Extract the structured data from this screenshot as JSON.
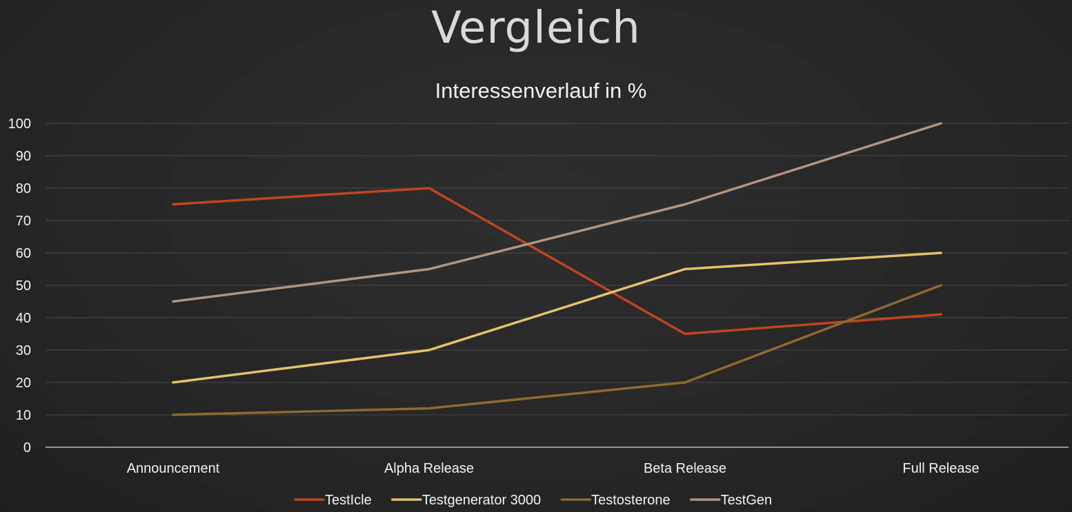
{
  "slide": {
    "title": "Vergleich"
  },
  "chart_data": {
    "type": "line",
    "title": "Interessenverlauf in %",
    "xlabel": "",
    "ylabel": "",
    "categories": [
      "Announcement",
      "Alpha Release",
      "Beta Release",
      "Full Release"
    ],
    "ylim": [
      0,
      100
    ],
    "yticks": [
      0,
      10,
      20,
      30,
      40,
      50,
      60,
      70,
      80,
      90,
      100
    ],
    "grid": true,
    "legend_position": "bottom",
    "series": [
      {
        "name": "TestIcle",
        "color": "#c0451f",
        "values": [
          75,
          80,
          35,
          41
        ]
      },
      {
        "name": "Testgenerator 3000",
        "color": "#e3c46a",
        "values": [
          20,
          30,
          55,
          60
        ]
      },
      {
        "name": "Testosterone",
        "color": "#8e6a2f",
        "values": [
          10,
          12,
          20,
          50
        ]
      },
      {
        "name": "TestGen",
        "color": "#b29580",
        "values": [
          45,
          55,
          75,
          100
        ]
      }
    ]
  }
}
